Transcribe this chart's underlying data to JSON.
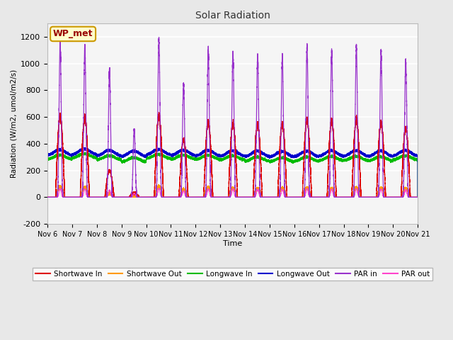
{
  "title": "Solar Radiation",
  "ylabel": "Radiation (W/m2, umol/m2/s)",
  "xlabel": "Time",
  "ylim": [
    -200,
    1300
  ],
  "yticks": [
    -200,
    0,
    200,
    400,
    600,
    800,
    1000,
    1200
  ],
  "xtick_labels": [
    "Nov 6",
    "Nov 7",
    "Nov 8",
    "Nov 9",
    "Nov 10",
    "Nov 11",
    "Nov 12",
    "Nov 13",
    "Nov 14",
    "Nov 15",
    "Nov 16",
    "Nov 17",
    "Nov 18",
    "Nov 19",
    "Nov 20",
    "Nov 21"
  ],
  "label_box": "WP_met",
  "colors": {
    "shortwave_in": "#dd0000",
    "shortwave_out": "#ff9900",
    "longwave_in": "#00bb00",
    "longwave_out": "#0000cc",
    "par_in": "#9933cc",
    "par_out": "#ff44cc"
  },
  "legend_labels": [
    "Shortwave In",
    "Shortwave Out",
    "Longwave In",
    "Longwave Out",
    "PAR in",
    "PAR out"
  ],
  "background_color": "#e8e8e8",
  "plot_bg": "#f0f0f0",
  "n_days": 15,
  "points_per_day": 1440,
  "par_in_peaks": [
    1150,
    1130,
    960,
    510,
    1180,
    850,
    1100,
    1080,
    1060,
    1050,
    1130,
    1090,
    1130,
    1090,
    1020
  ],
  "sw_in_peaks": [
    600,
    585,
    200,
    30,
    605,
    430,
    555,
    545,
    545,
    545,
    575,
    570,
    575,
    555,
    515
  ],
  "sw_out_peaks": [
    80,
    72,
    25,
    8,
    80,
    55,
    70,
    68,
    65,
    65,
    70,
    65,
    70,
    68,
    65
  ],
  "lw_in_base": [
    300,
    310,
    295,
    280,
    305,
    300,
    298,
    295,
    285,
    280,
    285,
    290,
    290,
    288,
    295
  ],
  "lw_out_base": [
    335,
    340,
    330,
    325,
    338,
    332,
    330,
    328,
    325,
    322,
    325,
    328,
    328,
    326,
    330
  ]
}
